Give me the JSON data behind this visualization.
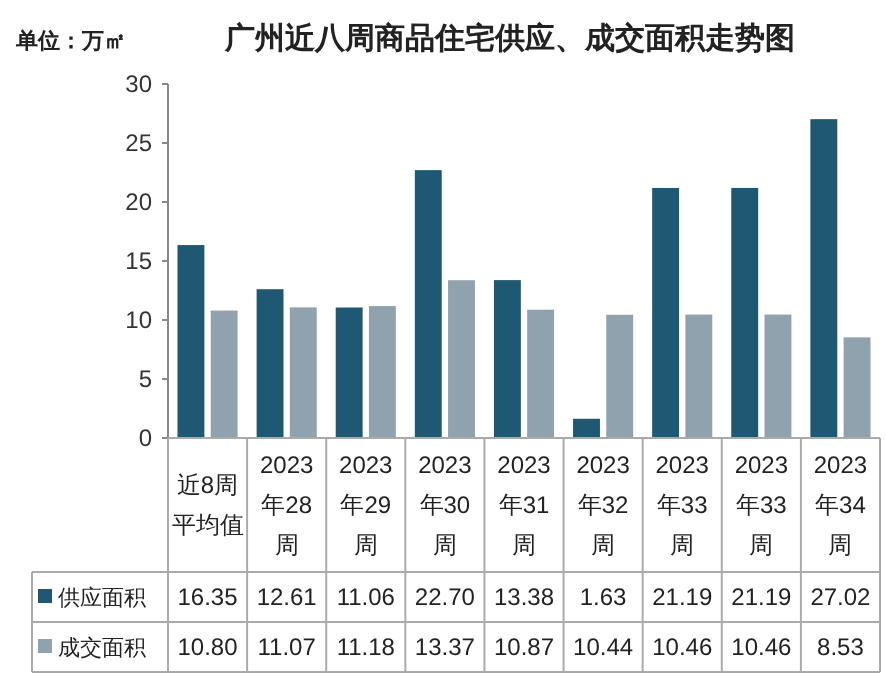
{
  "chart_data": {
    "type": "bar",
    "title": "广州近八周商品住宅供应、成交面积走势图",
    "ylabel": "单位：万㎡",
    "categories": [
      "近8周平均值",
      "2023年28周",
      "2023年29周",
      "2023年30周",
      "2023年31周",
      "2023年32周",
      "2023年33周",
      "2023年33周",
      "2023年34周"
    ],
    "series": [
      {
        "name": "供应面积",
        "color": "#1f5872",
        "values": [
          16.35,
          12.61,
          11.06,
          22.7,
          13.38,
          1.63,
          21.19,
          21.19,
          27.02
        ],
        "value_labels": [
          "16.35",
          "12.61",
          "11.06",
          "22.70",
          "13.38",
          "1.63",
          "21.19",
          "21.19",
          "27.02"
        ]
      },
      {
        "name": "成交面积",
        "color": "#8fa2ae",
        "values": [
          10.8,
          11.07,
          11.18,
          13.37,
          10.87,
          10.44,
          10.46,
          10.46,
          8.53
        ],
        "value_labels": [
          "10.80",
          "11.07",
          "11.18",
          "13.37",
          "10.87",
          "10.44",
          "10.46",
          "10.46",
          "8.53"
        ]
      }
    ],
    "ylim": [
      0,
      30
    ],
    "yticks": [
      0,
      5,
      10,
      15,
      20,
      25,
      30
    ],
    "grid": false,
    "legend": "bottom"
  }
}
